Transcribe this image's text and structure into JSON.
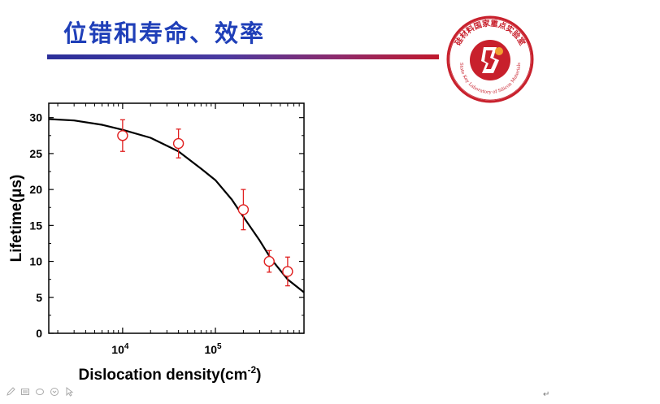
{
  "slide": {
    "title": "位错和寿命、效率"
  },
  "logo": {
    "chinese_text": "硅材料国家重点实验室",
    "english_text": "State Key Laboratory of Silicon Materials",
    "colors": {
      "ring": "#c8202c",
      "inner": "#c8202c",
      "white": "#ffffff",
      "accent": "#f0a030"
    }
  },
  "toolbar": {
    "icons": [
      "pen-icon",
      "slides-icon",
      "shape-icon",
      "pointer-options-icon",
      "arrow-cursor-icon"
    ]
  },
  "para_mark": "↵",
  "chart_data": {
    "type": "scatter",
    "xlabel": "Dislocation density(cm",
    "xlabel_sup": "-2",
    "xlabel_close": ")",
    "ylabel": "Lifetime(μs)",
    "x_scale": "log",
    "xlim": [
      1600,
      900000
    ],
    "ylim": [
      0,
      32
    ],
    "x_ticks": [
      {
        "value": 10000,
        "base": "10",
        "exp": "4"
      },
      {
        "value": 100000,
        "base": "10",
        "exp": "5"
      }
    ],
    "y_ticks": [
      0,
      5,
      10,
      15,
      20,
      25,
      30
    ],
    "series": [
      {
        "kind": "points",
        "marker": "open-circle",
        "color": "#e02020",
        "x": [
          10000,
          40000,
          200000,
          380000,
          600000
        ],
        "y": [
          27.5,
          26.4,
          17.2,
          10.0,
          8.6
        ],
        "err": [
          2.2,
          2.0,
          2.8,
          1.5,
          2.0
        ]
      },
      {
        "kind": "fit-curve",
        "color": "#000000",
        "x": [
          1600,
          3000,
          6000,
          10000,
          20000,
          40000,
          70000,
          100000,
          150000,
          200000,
          300000,
          400000,
          600000,
          900000
        ],
        "y": [
          29.8,
          29.6,
          29.0,
          28.3,
          27.2,
          25.3,
          22.9,
          21.3,
          18.6,
          16.2,
          12.9,
          10.3,
          7.5,
          5.7
        ]
      }
    ],
    "grid": false,
    "legend": "none"
  },
  "ui_colors": {
    "title": "#1f3fb8",
    "error": "#e02020",
    "axis": "#000000"
  }
}
